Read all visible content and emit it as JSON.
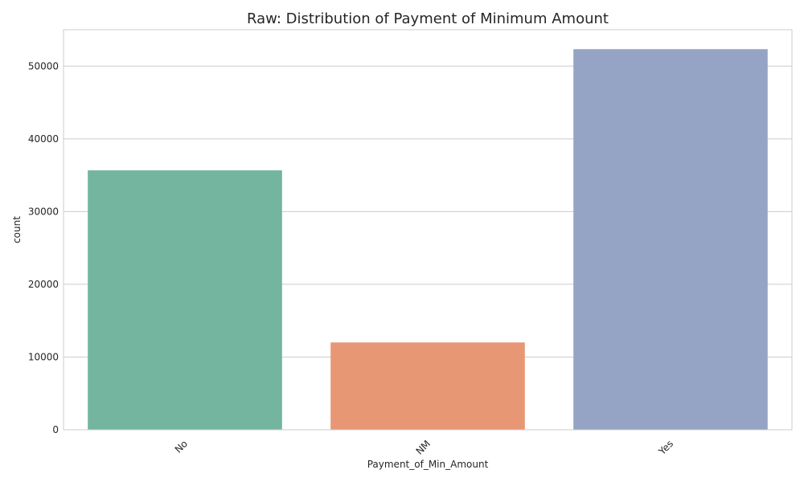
{
  "chart_data": {
    "type": "bar",
    "title": "Raw: Distribution of Payment of Minimum Amount",
    "xlabel": "Payment_of_Min_Amount",
    "ylabel": "count",
    "categories": [
      "No",
      "NM",
      "Yes"
    ],
    "values": [
      35667,
      12007,
      52326
    ],
    "colors": [
      "#73b59f",
      "#e89775",
      "#95a4c4"
    ],
    "ylim": [
      0,
      55000
    ],
    "yticks": [
      0,
      10000,
      20000,
      30000,
      40000,
      50000
    ],
    "grid": true,
    "style": {
      "grid_color": "#cccccc",
      "text_color": "#262626",
      "background": "#ffffff"
    }
  }
}
